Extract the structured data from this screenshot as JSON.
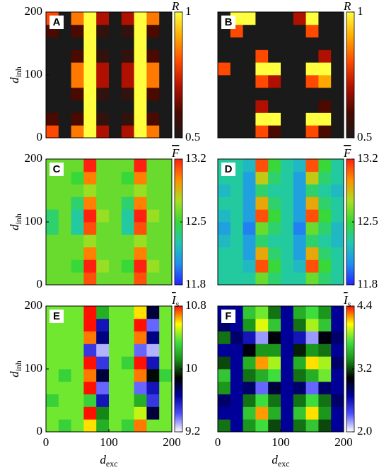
{
  "chart_data": [
    {
      "type": "heatmap",
      "panel_label": "A",
      "colorbar_label": {
        "symbol": "R"
      },
      "overline": true,
      "y_label": {
        "symbol": "d",
        "subscript": "inh"
      },
      "xlim": [
        0,
        200
      ],
      "ylim": [
        0,
        200
      ],
      "yticks": [
        0,
        100,
        200
      ],
      "zlim": [
        0.5,
        1
      ],
      "zticks": [
        0.5,
        1
      ],
      "colors": [
        "#1a1a1a",
        "#4a0a00",
        "#b01000",
        "#ff4800",
        "#ffa800",
        "#ffff40"
      ],
      "x": [
        10,
        30,
        50,
        70,
        90,
        110,
        130,
        150,
        170,
        190
      ],
      "y": [
        10,
        30,
        50,
        70,
        90,
        110,
        130,
        150,
        170,
        190
      ],
      "z": [
        [
          0.8,
          0.5,
          0.85,
          1,
          0.7,
          0.5,
          0.7,
          1,
          0.85,
          0.5
        ],
        [
          0.6,
          0.5,
          0.6,
          1,
          0.55,
          0.5,
          0.55,
          1,
          0.6,
          0.5
        ],
        [
          0.5,
          0.5,
          0.5,
          1,
          0.5,
          0.5,
          0.5,
          1,
          0.5,
          0.5
        ],
        [
          0.5,
          0.5,
          0.6,
          1,
          0.55,
          0.5,
          0.55,
          1,
          0.6,
          0.5
        ],
        [
          0.5,
          0.5,
          0.85,
          1,
          0.7,
          0.5,
          0.7,
          1,
          0.85,
          0.5
        ],
        [
          0.5,
          0.5,
          0.85,
          1,
          0.7,
          0.5,
          0.7,
          1,
          0.85,
          0.5
        ],
        [
          0.5,
          0.5,
          0.6,
          1,
          0.55,
          0.5,
          0.55,
          1,
          0.6,
          0.5
        ],
        [
          0.5,
          0.5,
          0.5,
          1,
          0.5,
          0.5,
          0.5,
          1,
          0.5,
          0.5
        ],
        [
          0.6,
          0.5,
          0.6,
          1,
          0.55,
          0.5,
          0.55,
          1,
          0.6,
          0.5
        ],
        [
          0.8,
          0.5,
          0.85,
          1,
          0.7,
          0.5,
          0.7,
          1,
          0.85,
          0.5
        ]
      ]
    },
    {
      "type": "heatmap",
      "panel_label": "B",
      "colorbar_label": {
        "symbol": "R"
      },
      "overline": true,
      "xlim": [
        0,
        200
      ],
      "ylim": [
        0,
        200
      ],
      "zlim": [
        0.5,
        1
      ],
      "zticks": [
        0.5,
        1
      ],
      "colors": [
        "#1a1a1a",
        "#4a0a00",
        "#b01000",
        "#ff4800",
        "#ffa800",
        "#ffff40"
      ],
      "x": [
        10,
        30,
        50,
        70,
        90,
        110,
        130,
        150,
        170,
        190
      ],
      "y": [
        10,
        30,
        50,
        70,
        90,
        110,
        130,
        150,
        170,
        190
      ],
      "z": [
        [
          0.5,
          0.5,
          0.5,
          0.8,
          0.6,
          0.5,
          0.5,
          0.8,
          0.6,
          0.5
        ],
        [
          0.5,
          0.5,
          0.5,
          1,
          1,
          0.5,
          0.5,
          1,
          1,
          0.5
        ],
        [
          0.5,
          0.5,
          0.5,
          0.7,
          0.5,
          0.5,
          0.5,
          0.5,
          0.6,
          0.5
        ],
        [
          0.5,
          0.5,
          0.5,
          0.5,
          0.5,
          0.5,
          0.5,
          0.5,
          0.5,
          0.5
        ],
        [
          0.5,
          0.5,
          0.5,
          0.8,
          0.7,
          0.5,
          0.5,
          0.8,
          0.9,
          0.5
        ],
        [
          0.8,
          0.5,
          0.5,
          1,
          1,
          0.5,
          0.5,
          1,
          1,
          0.5
        ],
        [
          0.5,
          0.5,
          0.5,
          0.8,
          0.5,
          0.5,
          0.5,
          0.5,
          0.7,
          0.5
        ],
        [
          0.5,
          0.5,
          0.5,
          0.5,
          0.5,
          0.5,
          0.5,
          0.5,
          0.5,
          0.5
        ],
        [
          0.5,
          0.8,
          0.5,
          0.5,
          0.5,
          0.5,
          0.5,
          0.8,
          0.5,
          0.5
        ],
        [
          0.5,
          1,
          1,
          0.5,
          0.5,
          0.5,
          0.7,
          1,
          0.5,
          0.5
        ]
      ]
    },
    {
      "type": "heatmap",
      "panel_label": "C",
      "colorbar_label": {
        "symbol": "F"
      },
      "overline": true,
      "y_label": {
        "symbol": "d",
        "subscript": "inh"
      },
      "xlim": [
        0,
        200
      ],
      "ylim": [
        0,
        200
      ],
      "yticks": [
        0,
        100,
        200
      ],
      "zlim": [
        11.8,
        13.2
      ],
      "zticks": [
        11.8,
        12.5,
        13.2
      ],
      "colors": [
        "#2424ff",
        "#2090f0",
        "#20c8b0",
        "#38d838",
        "#a8e020",
        "#ff9000",
        "#ff2010"
      ],
      "x": [
        10,
        30,
        50,
        70,
        90,
        110,
        130,
        150,
        170,
        190
      ],
      "y": [
        10,
        30,
        50,
        70,
        90,
        110,
        130,
        150,
        170,
        190
      ],
      "z": [
        [
          12.6,
          12.6,
          12.6,
          13.1,
          12.6,
          12.6,
          12.6,
          13.1,
          12.6,
          12.6
        ],
        [
          12.6,
          12.6,
          12.5,
          13.2,
          12.7,
          12.6,
          12.5,
          13.2,
          12.7,
          12.6
        ],
        [
          12.6,
          12.6,
          12.6,
          13.0,
          12.6,
          12.6,
          12.6,
          13.0,
          12.6,
          12.6
        ],
        [
          12.6,
          12.6,
          12.6,
          12.7,
          12.6,
          12.6,
          12.6,
          12.7,
          12.6,
          12.6
        ],
        [
          12.4,
          12.6,
          12.3,
          13.1,
          12.6,
          12.6,
          12.3,
          13.1,
          12.6,
          12.6
        ],
        [
          12.4,
          12.6,
          12.3,
          13.2,
          12.7,
          12.6,
          12.3,
          13.2,
          12.7,
          12.6
        ],
        [
          12.6,
          12.6,
          12.4,
          13.0,
          12.6,
          12.6,
          12.4,
          13.0,
          12.6,
          12.6
        ],
        [
          12.6,
          12.6,
          12.6,
          12.7,
          12.6,
          12.6,
          12.6,
          12.7,
          12.6,
          12.6
        ],
        [
          12.6,
          12.6,
          12.5,
          13.0,
          12.6,
          12.6,
          12.5,
          13.0,
          12.6,
          12.6
        ],
        [
          12.6,
          12.6,
          12.6,
          13.2,
          12.6,
          12.6,
          12.6,
          13.2,
          12.6,
          12.6
        ]
      ]
    },
    {
      "type": "heatmap",
      "panel_label": "D",
      "colorbar_label": {
        "symbol": "F"
      },
      "overline": true,
      "xlim": [
        0,
        200
      ],
      "ylim": [
        0,
        200
      ],
      "zlim": [
        11.8,
        13.2
      ],
      "zticks": [
        11.8,
        12.5,
        13.2
      ],
      "colors": [
        "#2424ff",
        "#2090f0",
        "#20c8b0",
        "#38d838",
        "#a8e020",
        "#ff9000",
        "#ff2010"
      ],
      "x": [
        10,
        30,
        50,
        70,
        90,
        110,
        130,
        150,
        170,
        190
      ],
      "y": [
        10,
        30,
        50,
        70,
        90,
        110,
        130,
        150,
        170,
        190
      ],
      "z": [
        [
          12.3,
          12.3,
          12.3,
          12.6,
          12.4,
          12.3,
          12.3,
          12.6,
          12.4,
          12.3
        ],
        [
          12.3,
          12.3,
          12.2,
          13.1,
          12.5,
          12.3,
          12.2,
          13.1,
          12.5,
          12.3
        ],
        [
          12.3,
          12.3,
          12.1,
          12.9,
          12.4,
          12.3,
          12.1,
          12.9,
          12.4,
          12.3
        ],
        [
          12.2,
          12.3,
          12.1,
          12.4,
          12.3,
          12.3,
          12.1,
          12.4,
          12.3,
          12.2
        ],
        [
          12.1,
          12.3,
          12.0,
          12.6,
          12.4,
          12.3,
          12.0,
          12.6,
          12.4,
          12.2
        ],
        [
          12.2,
          12.3,
          12.1,
          13.1,
          12.5,
          12.3,
          12.1,
          13.1,
          12.5,
          12.3
        ],
        [
          12.3,
          12.3,
          12.1,
          12.9,
          12.4,
          12.3,
          12.1,
          12.9,
          12.4,
          12.3
        ],
        [
          12.2,
          12.3,
          12.1,
          12.4,
          12.3,
          12.3,
          12.1,
          12.4,
          12.3,
          12.2
        ],
        [
          12.3,
          12.3,
          12.1,
          12.8,
          12.4,
          12.3,
          12.1,
          12.8,
          12.4,
          12.3
        ],
        [
          12.3,
          12.3,
          12.2,
          13.1,
          12.5,
          12.3,
          12.2,
          13.1,
          12.5,
          12.3
        ]
      ]
    },
    {
      "type": "heatmap",
      "panel_label": "E",
      "colorbar_label": {
        "symbol": "I",
        "subscript": "s"
      },
      "overline": true,
      "y_label": {
        "symbol": "d",
        "subscript": "inh"
      },
      "x_label": {
        "symbol": "d",
        "subscript": "exc"
      },
      "xlim": [
        0,
        200
      ],
      "ylim": [
        0,
        200
      ],
      "xticks": [
        0,
        100,
        200
      ],
      "yticks": [
        0,
        100,
        200
      ],
      "zlim": [
        9.2,
        10.8
      ],
      "zticks": [
        9.2,
        10,
        10.8
      ],
      "colors": [
        "#ffffff",
        "#5050ff",
        "#0000a0",
        "#000000",
        "#189018",
        "#40e040",
        "#ffff00",
        "#ff1000"
      ],
      "x": [
        10,
        30,
        50,
        70,
        90,
        110,
        130,
        150,
        170,
        190
      ],
      "y": [
        10,
        30,
        50,
        70,
        90,
        110,
        130,
        150,
        170,
        190
      ],
      "z": [
        [
          10.4,
          10.3,
          10.4,
          10.6,
          10.2,
          10.4,
          10.3,
          10.7,
          10.4,
          10.4
        ],
        [
          10.4,
          10.4,
          10.4,
          10.8,
          10.1,
          10.4,
          10.4,
          10.5,
          9.8,
          10.4
        ],
        [
          10.3,
          10.4,
          10.4,
          10.3,
          9.6,
          10.4,
          10.4,
          10.2,
          9.5,
          10.4
        ],
        [
          10.4,
          10.4,
          10.4,
          10.8,
          9.4,
          10.4,
          10.4,
          9.4,
          9.6,
          10.4
        ],
        [
          10.4,
          10.3,
          10.4,
          10.7,
          9.8,
          10.4,
          10.4,
          10.7,
          9.9,
          10.3
        ],
        [
          10.4,
          10.4,
          10.4,
          10.8,
          9.5,
          10.4,
          10.3,
          10.8,
          9.6,
          10.4
        ],
        [
          10.4,
          10.4,
          10.4,
          9.5,
          9.3,
          10.4,
          10.4,
          9.4,
          9.3,
          10.4
        ],
        [
          10.4,
          10.4,
          10.4,
          10.7,
          9.7,
          10.4,
          10.4,
          10.7,
          9.7,
          10.4
        ],
        [
          10.4,
          10.4,
          10.4,
          10.8,
          9.6,
          10.4,
          10.4,
          10.8,
          9.4,
          10.4
        ],
        [
          10.4,
          10.4,
          10.4,
          10.8,
          10.2,
          10.4,
          10.4,
          10.6,
          9.8,
          10.4
        ]
      ]
    },
    {
      "type": "heatmap",
      "panel_label": "F",
      "colorbar_label": {
        "symbol": "I",
        "subscript": "s"
      },
      "overline": true,
      "x_label": {
        "symbol": "d",
        "subscript": "exc"
      },
      "xlim": [
        0,
        200
      ],
      "ylim": [
        0,
        200
      ],
      "xticks": [
        0,
        100,
        200
      ],
      "zlim": [
        2.0,
        4.4
      ],
      "zticks": [
        {
          "value": 2.0,
          "label": "2.0"
        },
        3.2,
        4.4
      ],
      "colors": [
        "#ffffff",
        "#5050ff",
        "#0000a0",
        "#000000",
        "#189018",
        "#40e040",
        "#ffff00",
        "#ff1000"
      ],
      "x": [
        10,
        30,
        50,
        70,
        90,
        110,
        130,
        150,
        170,
        190
      ],
      "y": [
        10,
        30,
        50,
        70,
        90,
        110,
        130,
        150,
        170,
        190
      ],
      "z": [
        [
          3.3,
          2.7,
          3.4,
          3.7,
          3.2,
          2.7,
          3.3,
          3.6,
          3.2,
          2.7
        ],
        [
          2.7,
          2.7,
          3.6,
          4.2,
          3.5,
          2.7,
          3.6,
          4.1,
          3.4,
          2.7
        ],
        [
          2.8,
          2.7,
          3.3,
          3.7,
          3.3,
          2.7,
          3.3,
          3.7,
          3.3,
          2.8
        ],
        [
          3.4,
          2.7,
          2.8,
          2.3,
          2.9,
          2.7,
          2.8,
          2.3,
          2.8,
          2.7
        ],
        [
          3.6,
          2.7,
          3.3,
          3.5,
          3.7,
          2.7,
          3.3,
          3.5,
          3.8,
          2.7
        ],
        [
          3.2,
          2.7,
          3.5,
          4.2,
          3.9,
          2.7,
          3.5,
          4.1,
          3.9,
          2.8
        ],
        [
          2.7,
          2.7,
          3.0,
          3.4,
          3.4,
          2.7,
          3.1,
          3.4,
          3.3,
          2.7
        ],
        [
          3.3,
          2.8,
          2.6,
          2.2,
          3.0,
          2.7,
          2.6,
          2.2,
          3.0,
          2.8
        ],
        [
          2.8,
          2.7,
          3.4,
          4.0,
          3.6,
          2.7,
          3.3,
          3.9,
          3.6,
          2.7
        ],
        [
          2.7,
          2.7,
          3.6,
          3.8,
          3.3,
          2.7,
          3.5,
          3.7,
          3.4,
          2.7
        ]
      ]
    }
  ]
}
